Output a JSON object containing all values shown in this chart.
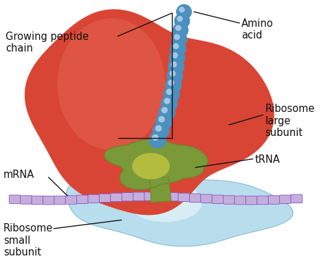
{
  "background_color": "#ffffff",
  "large_subunit_color": "#d94535",
  "large_subunit_highlight": "#e8705a",
  "small_subunit_color": "#b8dded",
  "small_subunit_outline": "#88bbd0",
  "trna_color": "#7a9a3a",
  "trna_color2": "#6a8a2a",
  "trna_highlight": "#c8c840",
  "mrna_bead_fill": "#c4aedd",
  "mrna_bead_edge": "#8855bb",
  "peptide_color": "#4a90c0",
  "peptide_highlight": "#aad4f0",
  "label_fontsize": 10.5,
  "label_color": "#111111",
  "line_color": "#111111",
  "line_lw": 1.0,
  "labels": {
    "growing_peptide_chain": "Growing peptide\nchain",
    "amino_acid": "Amino\nacid",
    "ribosome_large": "Ribosome\nlarge\nsubunit",
    "trna": "tRNA",
    "mrna": "mRNA",
    "ribosome_small": "Ribosome\nsmall\nsubunit"
  }
}
